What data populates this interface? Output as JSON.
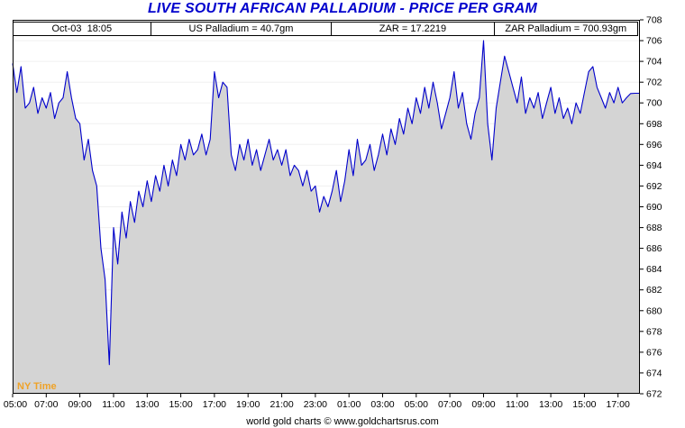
{
  "info_bar": {
    "timestamp": "Oct-03  18:05",
    "us_palladium": "US Palladium = 40.7gm",
    "zar_rate": "ZAR = 17.2219",
    "zar_palladium": "ZAR Palladium = 700.93gm"
  },
  "footer": {
    "credit": "world gold charts © www.goldchartsrus.com"
  },
  "chart_data": {
    "type": "area",
    "title": "LIVE SOUTH AFRICAN PALLADIUM - PRICE PER GRAM",
    "xlabel": "",
    "ylabel": "",
    "ny_time_label": "NY Time",
    "legend_position": "none",
    "grid": "faint-horizontal",
    "xlim": [
      0,
      37.3
    ],
    "ylim": [
      672,
      708
    ],
    "y_ticks": [
      672,
      674,
      676,
      678,
      680,
      682,
      684,
      686,
      688,
      690,
      692,
      694,
      696,
      698,
      700,
      702,
      704,
      706,
      708
    ],
    "x_ticks": [
      {
        "x": 0,
        "label": "05:00"
      },
      {
        "x": 2,
        "label": "07:00"
      },
      {
        "x": 4,
        "label": "09:00"
      },
      {
        "x": 6,
        "label": "11:00"
      },
      {
        "x": 8,
        "label": "13:00"
      },
      {
        "x": 10,
        "label": "15:00"
      },
      {
        "x": 12,
        "label": "17:00"
      },
      {
        "x": 14,
        "label": "19:00"
      },
      {
        "x": 16,
        "label": "21:00"
      },
      {
        "x": 18,
        "label": "23:00"
      },
      {
        "x": 20,
        "label": "01:00"
      },
      {
        "x": 22,
        "label": "03:00"
      },
      {
        "x": 24,
        "label": "05:00"
      },
      {
        "x": 26,
        "label": "07:00"
      },
      {
        "x": 28,
        "label": "09:00"
      },
      {
        "x": 30,
        "label": "11:00"
      },
      {
        "x": 32,
        "label": "13:00"
      },
      {
        "x": 34,
        "label": "15:00"
      },
      {
        "x": 36,
        "label": "17:00"
      }
    ],
    "x": [
      0,
      0.25,
      0.5,
      0.75,
      1,
      1.25,
      1.5,
      1.75,
      2,
      2.25,
      2.5,
      2.75,
      3,
      3.25,
      3.5,
      3.75,
      4,
      4.25,
      4.5,
      4.75,
      5,
      5.25,
      5.5,
      5.75,
      6,
      6.25,
      6.5,
      6.75,
      7,
      7.25,
      7.5,
      7.75,
      8,
      8.25,
      8.5,
      8.75,
      9,
      9.25,
      9.5,
      9.75,
      10,
      10.25,
      10.5,
      10.75,
      11,
      11.25,
      11.5,
      11.75,
      12,
      12.25,
      12.5,
      12.75,
      13,
      13.25,
      13.5,
      13.75,
      14,
      14.25,
      14.5,
      14.75,
      15,
      15.25,
      15.5,
      15.75,
      16,
      16.25,
      16.5,
      16.75,
      17,
      17.25,
      17.5,
      17.75,
      18,
      18.25,
      18.5,
      18.75,
      19,
      19.25,
      19.5,
      19.75,
      20,
      20.25,
      20.5,
      20.75,
      21,
      21.25,
      21.5,
      21.75,
      22,
      22.25,
      22.5,
      22.75,
      23,
      23.25,
      23.5,
      23.75,
      24,
      24.25,
      24.5,
      24.75,
      25,
      25.25,
      25.5,
      25.75,
      26,
      26.25,
      26.5,
      26.75,
      27,
      27.25,
      27.5,
      27.75,
      28,
      28.25,
      28.5,
      28.75,
      29,
      29.25,
      29.5,
      29.75,
      30,
      30.25,
      30.5,
      30.75,
      31,
      31.25,
      31.5,
      31.75,
      32,
      32.25,
      32.5,
      32.75,
      33,
      33.25,
      33.5,
      33.75,
      34,
      34.25,
      34.5,
      34.75,
      35,
      35.25,
      35.5,
      35.75,
      36,
      36.25,
      36.5,
      36.75,
      37,
      37.3
    ],
    "y": [
      703.8,
      701,
      703.5,
      699.5,
      700,
      701.5,
      699,
      700.5,
      699.5,
      701,
      698.5,
      700,
      700.5,
      703,
      700.5,
      698.5,
      698,
      694.5,
      696.5,
      693.5,
      692,
      686,
      683,
      674.8,
      688,
      684.5,
      689.5,
      687,
      690.5,
      688.5,
      691.5,
      690,
      692.5,
      690.5,
      693,
      691.5,
      694,
      692,
      694.5,
      693,
      696,
      694.5,
      696.5,
      695,
      695.5,
      697,
      695,
      696.5,
      703,
      700.5,
      702,
      701.5,
      695,
      693.5,
      696,
      694.5,
      696.5,
      694,
      695.5,
      693.5,
      695,
      696.5,
      694.5,
      695.5,
      694,
      695.5,
      693,
      694,
      693.5,
      692,
      693.5,
      691.5,
      692,
      689.5,
      691,
      690,
      691.5,
      693.5,
      690.5,
      692.5,
      695.5,
      693,
      696.5,
      694,
      694.5,
      696,
      693.5,
      695,
      697,
      695,
      697.5,
      696,
      698.5,
      697,
      699.5,
      698,
      700.5,
      699,
      701.5,
      699.5,
      702,
      700,
      697.5,
      699,
      700.5,
      703,
      699.5,
      701,
      698,
      696.5,
      699,
      700.5,
      706,
      698,
      694.5,
      699.5,
      702,
      704.5,
      703,
      701.5,
      700,
      702.5,
      699,
      700.5,
      699.5,
      701,
      698.5,
      700,
      701.5,
      699,
      700.5,
      698.5,
      699.5,
      698,
      700,
      699,
      701,
      703,
      703.5,
      701.5,
      700.5,
      699.5,
      701,
      700,
      701.5,
      700,
      700.5,
      700.9,
      700.93,
      700.93
    ],
    "colors": {
      "title": "#0101CD",
      "line": "#0000CC",
      "fill": "#D4D4D4",
      "axis": "#000000",
      "grid": "#F0F0F0",
      "ny_time": "#EFA227"
    }
  }
}
